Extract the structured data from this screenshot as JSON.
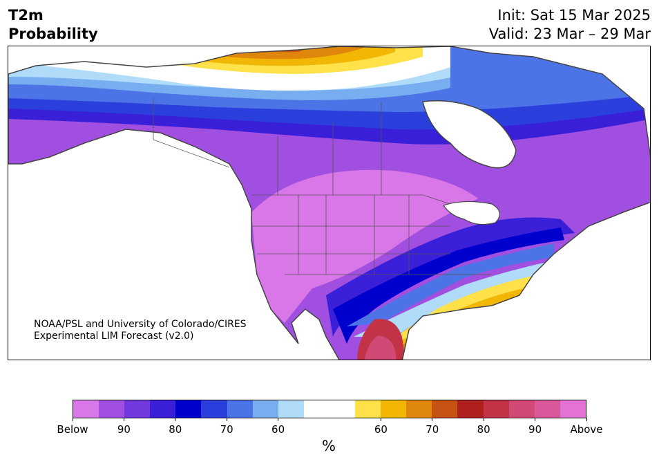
{
  "title_left": {
    "line1": "T2m",
    "line2": "Probability"
  },
  "title_right": {
    "line1": "Init: Sat 15 Mar 2025",
    "line2": "Valid: 23 Mar – 29 Mar"
  },
  "credit": {
    "line1": "NOAA/PSL and University of Colorado/CIRES",
    "line2": "Experimental LIM Forecast (v2.0)"
  },
  "colorbar": {
    "colors": [
      "#d977e8",
      "#a04fe0",
      "#7038dd",
      "#3a1fd8",
      "#0000cc",
      "#2a3fdc",
      "#4d74e6",
      "#78aef0",
      "#b0dcfa",
      "#ffffff",
      "#ffffff",
      "#ffe14a",
      "#f2b705",
      "#df860c",
      "#c65314",
      "#b0201e",
      "#c33348",
      "#d04a75",
      "#d9589c",
      "#e472d4"
    ],
    "tick_labels": [
      "Below",
      "90",
      "80",
      "70",
      "60",
      "60",
      "70",
      "80",
      "90",
      "Above"
    ],
    "unit": "%"
  },
  "map": {
    "region": "North America",
    "legend_meaning": "Probability of below / above normal 2m temperature"
  }
}
